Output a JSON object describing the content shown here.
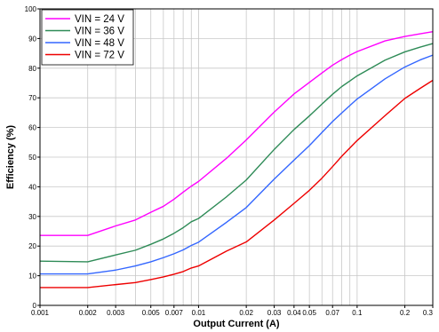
{
  "chart_data": {
    "type": "line",
    "title": "",
    "xlabel": "Output Current (A)",
    "ylabel": "Efficiency (%)",
    "xscale": "log",
    "xlim": [
      0.001,
      0.3
    ],
    "ylim": [
      0,
      100
    ],
    "xticks": [
      0.001,
      0.002,
      0.003,
      0.005,
      0.007,
      0.01,
      0.02,
      0.03,
      0.04,
      0.05,
      0.07,
      0.1,
      0.2,
      0.3
    ],
    "xtick_labels": [
      "0.001",
      "0.002",
      "0.003",
      "0.005",
      "0.007",
      "0.01",
      "0.02",
      "0.03",
      "0.04",
      "0.05",
      "0.07",
      "0.1",
      "0.2",
      "0.3"
    ],
    "yticks": [
      0,
      10,
      20,
      30,
      40,
      50,
      60,
      70,
      80,
      90,
      100
    ],
    "ytick_labels": [
      "0",
      "10",
      "20",
      "30",
      "40",
      "50",
      "60",
      "70",
      "80",
      "90",
      "100"
    ],
    "grid": true,
    "legend": "top-left",
    "series": [
      {
        "name": "VIN = 24 V",
        "color": "#ff00ff",
        "x": [
          0.001,
          0.002,
          0.003,
          0.004,
          0.005,
          0.006,
          0.007,
          0.008,
          0.009,
          0.01,
          0.015,
          0.02,
          0.03,
          0.04,
          0.05,
          0.06,
          0.07,
          0.08,
          0.09,
          0.1,
          0.15,
          0.2,
          0.25,
          0.3
        ],
        "y": [
          23.6,
          23.6,
          26.8,
          28.8,
          31.4,
          33.4,
          35.8,
          38.2,
          40.2,
          41.8,
          49.6,
          55.8,
          65.2,
          71.3,
          75.2,
          78.4,
          81.0,
          82.9,
          84.4,
          85.6,
          89.2,
          90.7,
          91.6,
          92.3
        ]
      },
      {
        "name": "VIN = 36 V",
        "color": "#2e8b57",
        "x": [
          0.001,
          0.002,
          0.003,
          0.004,
          0.005,
          0.006,
          0.007,
          0.008,
          0.009,
          0.01,
          0.015,
          0.02,
          0.03,
          0.04,
          0.05,
          0.06,
          0.07,
          0.08,
          0.09,
          0.1,
          0.15,
          0.2,
          0.25,
          0.3
        ],
        "y": [
          14.9,
          14.7,
          17.0,
          18.6,
          20.6,
          22.4,
          24.3,
          26.2,
          28.2,
          29.3,
          36.6,
          42.3,
          52.6,
          59.3,
          63.9,
          67.9,
          71.2,
          73.8,
          75.7,
          77.4,
          82.7,
          85.5,
          87.1,
          88.3
        ]
      },
      {
        "name": "VIN = 48 V",
        "color": "#3366ff",
        "x": [
          0.001,
          0.002,
          0.003,
          0.004,
          0.005,
          0.006,
          0.007,
          0.008,
          0.009,
          0.01,
          0.015,
          0.02,
          0.03,
          0.04,
          0.05,
          0.06,
          0.07,
          0.08,
          0.09,
          0.1,
          0.15,
          0.2,
          0.25,
          0.3
        ],
        "y": [
          10.6,
          10.6,
          11.9,
          13.3,
          14.7,
          16.1,
          17.4,
          18.7,
          20.2,
          21.3,
          28.0,
          33.0,
          42.6,
          49.0,
          53.9,
          58.3,
          62.0,
          64.9,
          67.4,
          69.6,
          76.4,
          80.4,
          82.8,
          84.4
        ]
      },
      {
        "name": "VIN = 72 V",
        "color": "#ee0000",
        "x": [
          0.001,
          0.002,
          0.003,
          0.004,
          0.005,
          0.006,
          0.007,
          0.008,
          0.009,
          0.01,
          0.015,
          0.02,
          0.03,
          0.04,
          0.05,
          0.06,
          0.07,
          0.08,
          0.09,
          0.1,
          0.15,
          0.2,
          0.25,
          0.3
        ],
        "y": [
          6.0,
          6.0,
          7.0,
          7.7,
          8.7,
          9.6,
          10.5,
          11.4,
          12.6,
          13.3,
          18.3,
          21.4,
          28.8,
          34.4,
          38.8,
          42.9,
          46.8,
          50.3,
          53.1,
          55.6,
          64.0,
          69.8,
          73.2,
          75.9
        ]
      }
    ]
  }
}
